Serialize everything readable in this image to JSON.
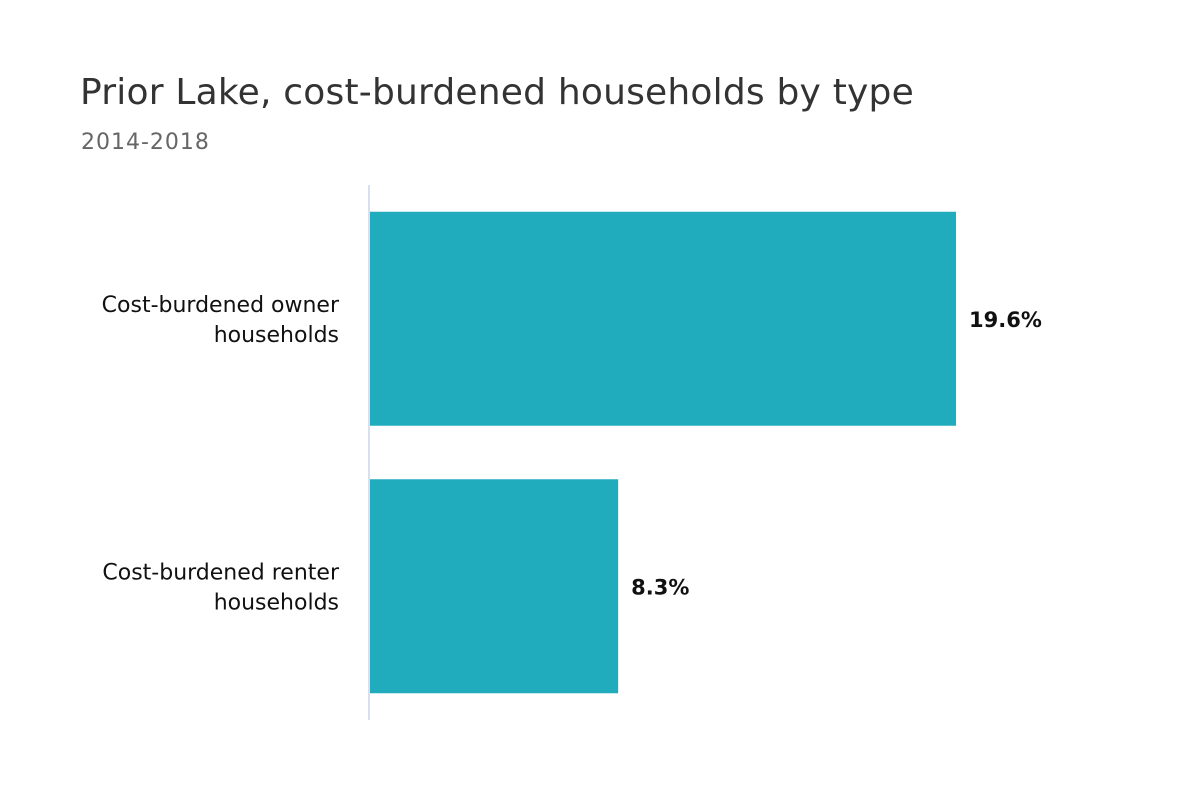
{
  "chart_data": {
    "type": "bar",
    "orientation": "horizontal",
    "title": "Prior Lake, cost-burdened households by type",
    "subtitle": "2014-2018",
    "categories": [
      [
        "Cost-burdened owner",
        "households"
      ],
      [
        "Cost-burdened renter",
        "households"
      ]
    ],
    "values": [
      19.6,
      8.3
    ],
    "value_labels": [
      "19.6%",
      "8.3%"
    ],
    "xlim": [
      0,
      25
    ],
    "grid": false,
    "legend": "none",
    "colors": {
      "bar": "#20acbd",
      "axis": "#ccd6eb"
    }
  }
}
